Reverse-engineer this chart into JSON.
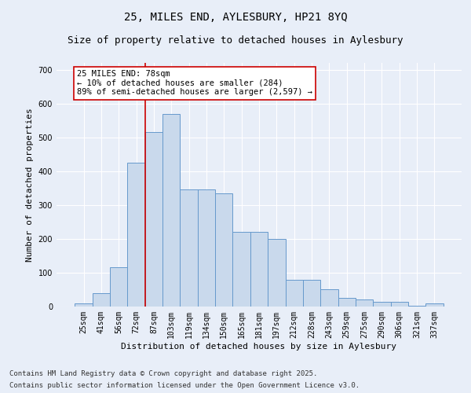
{
  "title_line1": "25, MILES END, AYLESBURY, HP21 8YQ",
  "title_line2": "Size of property relative to detached houses in Aylesbury",
  "xlabel": "Distribution of detached houses by size in Aylesbury",
  "ylabel": "Number of detached properties",
  "categories": [
    "25sqm",
    "41sqm",
    "56sqm",
    "72sqm",
    "87sqm",
    "103sqm",
    "119sqm",
    "134sqm",
    "150sqm",
    "165sqm",
    "181sqm",
    "197sqm",
    "212sqm",
    "228sqm",
    "243sqm",
    "259sqm",
    "275sqm",
    "290sqm",
    "306sqm",
    "321sqm",
    "337sqm"
  ],
  "values": [
    10,
    40,
    115,
    425,
    515,
    570,
    345,
    345,
    335,
    220,
    220,
    200,
    80,
    80,
    50,
    25,
    20,
    15,
    15,
    3,
    10
  ],
  "bar_color": "#c9d9ec",
  "bar_edge_color": "#6699cc",
  "vline_x_index": 3.5,
  "vline_color": "#cc0000",
  "annotation_text": "25 MILES END: 78sqm\n← 10% of detached houses are smaller (284)\n89% of semi-detached houses are larger (2,597) →",
  "annotation_box_color": "#ffffff",
  "annotation_box_edge_color": "#cc0000",
  "ylim": [
    0,
    720
  ],
  "yticks": [
    0,
    100,
    200,
    300,
    400,
    500,
    600,
    700
  ],
  "background_color": "#e8eef8",
  "footer_line1": "Contains HM Land Registry data © Crown copyright and database right 2025.",
  "footer_line2": "Contains public sector information licensed under the Open Government Licence v3.0.",
  "grid_color": "#ffffff",
  "title_fontsize": 10,
  "subtitle_fontsize": 9,
  "axis_fontsize": 8,
  "tick_fontsize": 7,
  "footer_fontsize": 6.5,
  "annotation_fontsize": 7.5
}
